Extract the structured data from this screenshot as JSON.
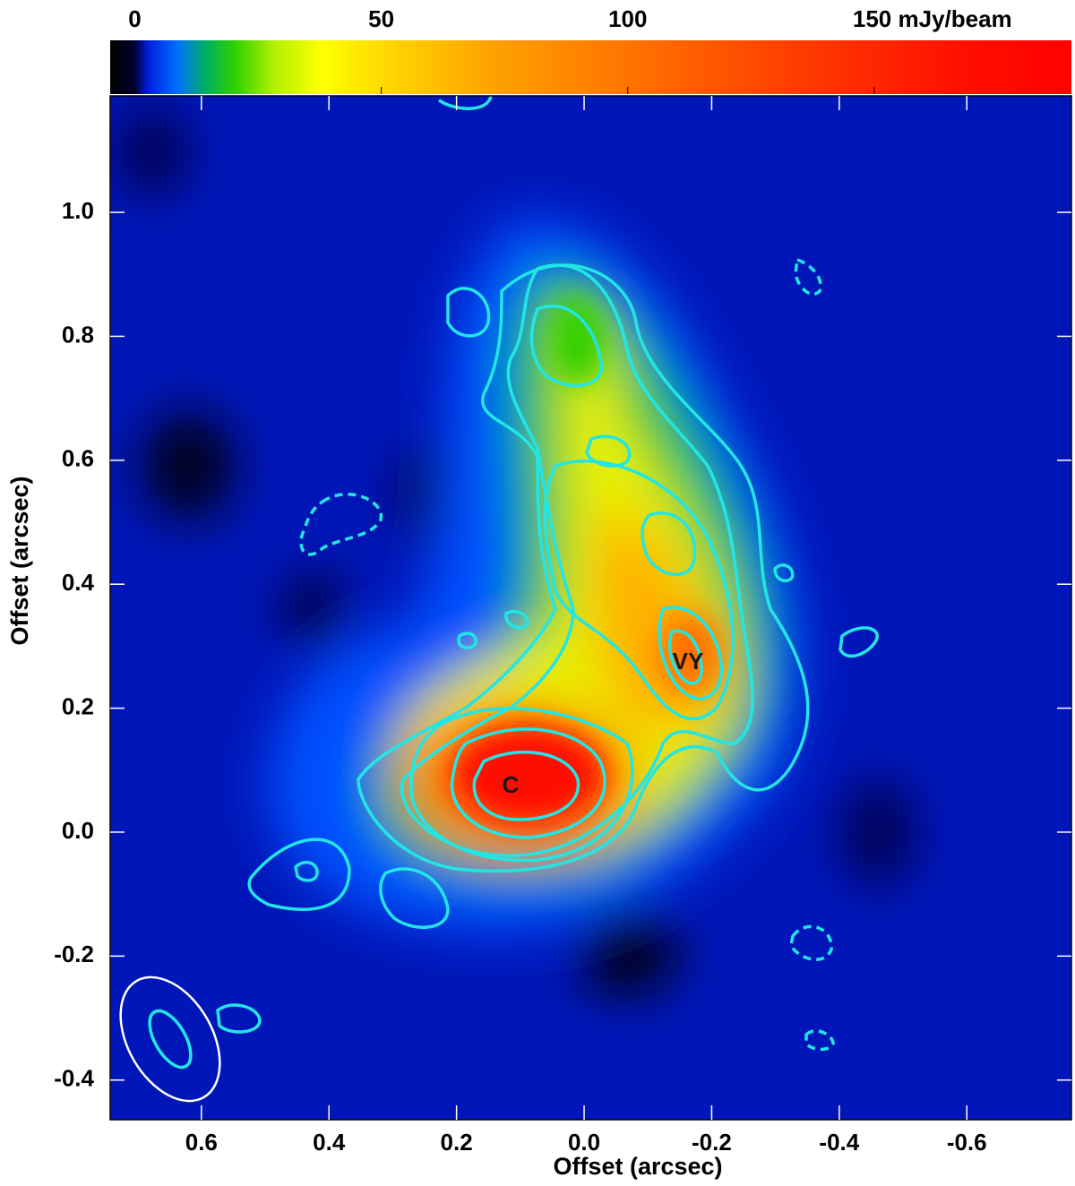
{
  "chart_data": {
    "type": "image",
    "xlabel": "Offset (arcsec)",
    "ylabel": "Offset (arcsec)",
    "xlim": [
      0.743,
      -0.764
    ],
    "xticks": [
      0.6,
      0.4,
      0.2,
      {
        "value": 0,
        "label": "0.0"
      },
      -0.2,
      -0.4,
      -0.6
    ],
    "ylim": [
      -0.464,
      1.188
    ],
    "yticks": [
      -0.4,
      -0.2,
      {
        "value": 0,
        "label": "0.0"
      },
      0.2,
      0.4,
      0.6,
      0.8,
      {
        "value": 1,
        "label": "1.0"
      }
    ],
    "colorbar": {
      "clim": [
        -5,
        190
      ],
      "ticks": [
        0,
        50,
        100,
        {
          "value": 150,
          "label": "150 mJy/beam"
        }
      ]
    },
    "annotations": [
      "C",
      "VY"
    ]
  }
}
